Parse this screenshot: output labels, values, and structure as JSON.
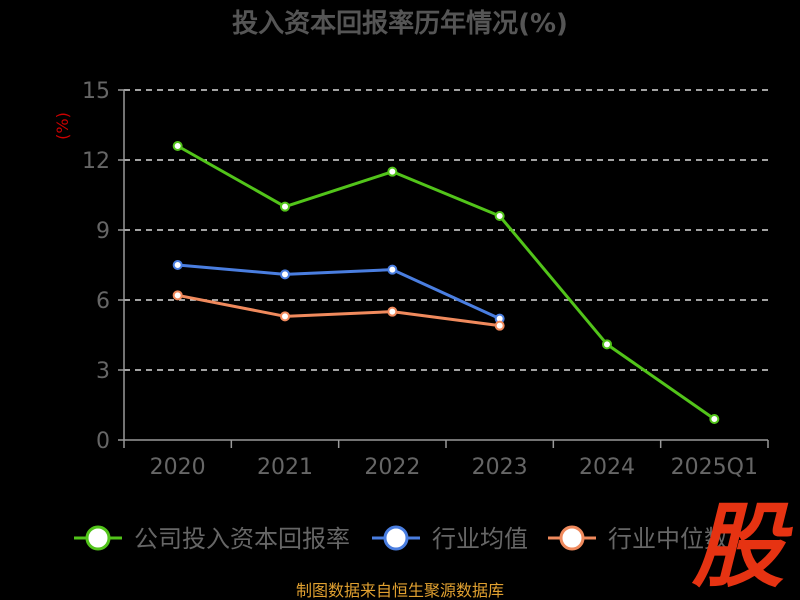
{
  "colors": {
    "background": "#000000",
    "axis": "#999999",
    "grid": "#d9d9d9",
    "tick_label": "#666666",
    "ylabel": "#cc0000",
    "title": "#555555",
    "source": "#e0a030",
    "logo": "#e63312"
  },
  "logo_text": "股",
  "source_text": "制图数据来自恒生聚源数据库",
  "chart_data": {
    "type": "line",
    "title": "投入资本回报率历年情况(%)",
    "xlabel": "",
    "ylabel": "(%)",
    "categories": [
      "2020",
      "2021",
      "2022",
      "2023",
      "2024",
      "2025Q1"
    ],
    "ylim": [
      0,
      15
    ],
    "yticks": [
      0,
      3,
      6,
      9,
      12,
      15
    ],
    "grid": true,
    "legend_position": "bottom",
    "series": [
      {
        "name": "公司投入资本回报率",
        "color": "#52c41a",
        "values": [
          12.6,
          10.0,
          11.5,
          9.6,
          4.1,
          0.9
        ]
      },
      {
        "name": "行业均值",
        "color": "#4a7ee0",
        "values": [
          7.5,
          7.1,
          7.3,
          5.2,
          null,
          null
        ]
      },
      {
        "name": "行业中位数",
        "color": "#f08a5d",
        "values": [
          6.2,
          5.3,
          5.5,
          4.9,
          null,
          null
        ]
      }
    ]
  }
}
